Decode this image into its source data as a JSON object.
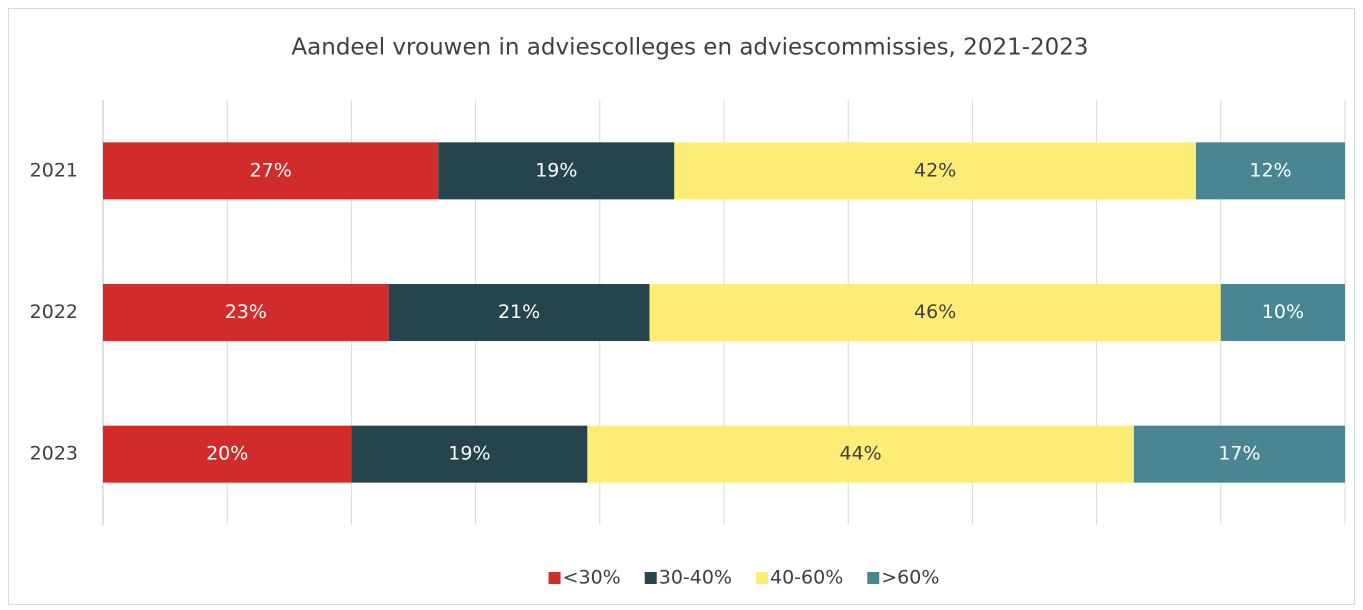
{
  "chart_data": {
    "type": "stacked_bar_horizontal",
    "title": "Aandeel vrouwen in adviescolleges en adviescommissies, 2021-2023",
    "categories": [
      "2021",
      "2022",
      "2023"
    ],
    "series": [
      {
        "name": "<30%",
        "color": "#d22b2b",
        "label_color": "#ffffff",
        "values": [
          27,
          23,
          20
        ],
        "value_labels": [
          "27%",
          "23%",
          "20%"
        ]
      },
      {
        "name": "30-40%",
        "color": "#25444b",
        "label_color": "#ffffff",
        "values": [
          19,
          21,
          19
        ],
        "value_labels": [
          "19%",
          "21%",
          "19%"
        ]
      },
      {
        "name": "40-60%",
        "color": "#fded77",
        "label_color": "#404040",
        "values": [
          42,
          46,
          44
        ],
        "value_labels": [
          "42%",
          "46%",
          "44%"
        ]
      },
      {
        "name": ">60%",
        "color": "#4a8692",
        "label_color": "#ffffff",
        "values": [
          12,
          10,
          17
        ],
        "value_labels": [
          "12%",
          "10%",
          "17%"
        ]
      }
    ],
    "xlim": [
      0,
      100
    ],
    "xticks": [
      0,
      10,
      20,
      30,
      40,
      50,
      60,
      70,
      80,
      90,
      100
    ],
    "grid": true,
    "legend": "bottom"
  }
}
